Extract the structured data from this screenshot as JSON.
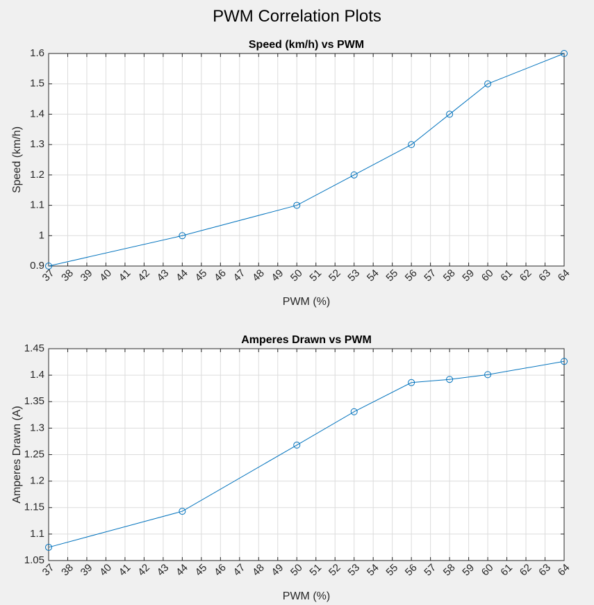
{
  "figure": {
    "suptitle": "PWM Correlation Plots"
  },
  "chart_data": [
    {
      "type": "line",
      "title": "Speed (km/h) vs PWM",
      "xlabel": "PWM (%)",
      "ylabel": "Speed (km/h)",
      "xlim": [
        37,
        64
      ],
      "ylim": [
        0.9,
        1.6
      ],
      "grid": true,
      "marker": "circle",
      "color": "#0072BD",
      "x_ticks": [
        37,
        38,
        39,
        40,
        41,
        42,
        43,
        44,
        45,
        46,
        47,
        48,
        49,
        50,
        51,
        52,
        53,
        54,
        55,
        56,
        57,
        58,
        59,
        60,
        61,
        62,
        63,
        64
      ],
      "y_ticks": [
        0.9,
        1,
        1.1,
        1.2,
        1.3,
        1.4,
        1.5,
        1.6
      ],
      "y_tick_labels": [
        "0.9",
        "1",
        "1.1",
        "1.2",
        "1.3",
        "1.4",
        "1.5",
        "1.6"
      ],
      "series": [
        {
          "x": [
            37,
            44,
            50,
            53,
            56,
            58,
            60,
            64
          ],
          "y": [
            0.9,
            1.0,
            1.1,
            1.2,
            1.3,
            1.4,
            1.5,
            1.6
          ]
        }
      ]
    },
    {
      "type": "line",
      "title": "Amperes Drawn vs PWM",
      "xlabel": "PWM (%)",
      "ylabel": "Amperes Drawn (A)",
      "xlim": [
        37,
        64
      ],
      "ylim": [
        1.05,
        1.45
      ],
      "grid": true,
      "marker": "circle",
      "color": "#0072BD",
      "x_ticks": [
        37,
        38,
        39,
        40,
        41,
        42,
        43,
        44,
        45,
        46,
        47,
        48,
        49,
        50,
        51,
        52,
        53,
        54,
        55,
        56,
        57,
        58,
        59,
        60,
        61,
        62,
        63,
        64
      ],
      "y_ticks": [
        1.05,
        1.1,
        1.15,
        1.2,
        1.25,
        1.3,
        1.35,
        1.4,
        1.45
      ],
      "y_tick_labels": [
        "1.05",
        "1.1",
        "1.15",
        "1.2",
        "1.25",
        "1.3",
        "1.35",
        "1.4",
        "1.45"
      ],
      "series": [
        {
          "x": [
            37,
            44,
            50,
            53,
            56,
            58,
            60,
            64
          ],
          "y": [
            1.075,
            1.143,
            1.268,
            1.331,
            1.386,
            1.392,
            1.401,
            1.426
          ]
        }
      ]
    }
  ]
}
